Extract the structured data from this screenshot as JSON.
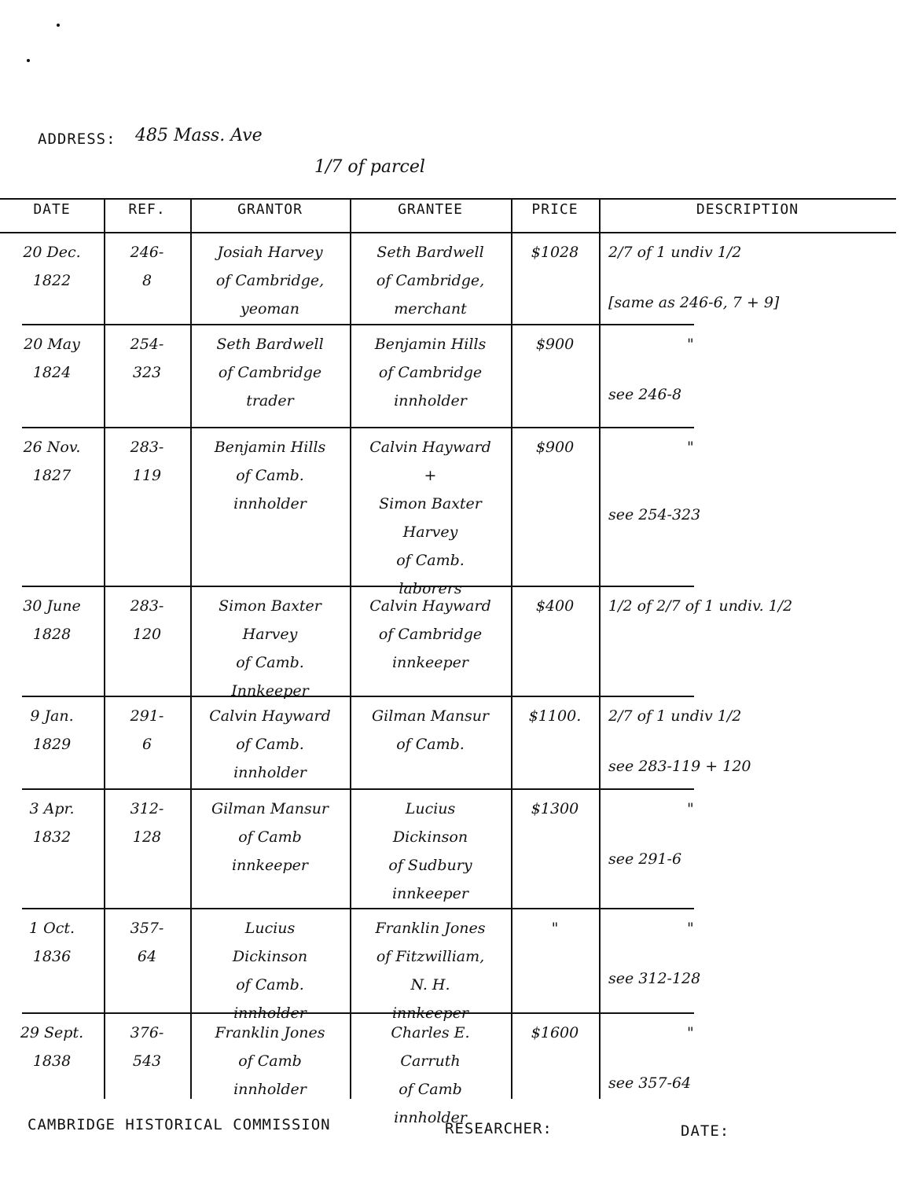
{
  "header": {
    "address_label": "ADDRESS:",
    "address_value": "485 Mass. Ave",
    "parcel_note": "1/7 of parcel"
  },
  "columns": [
    "DATE",
    "REF.",
    "GRANTOR",
    "GRANTEE",
    "PRICE",
    "DESCRIPTION"
  ],
  "rows": [
    {
      "date": [
        "20 Dec.",
        "1822"
      ],
      "ref": [
        "246-",
        "8"
      ],
      "grantor": [
        "Josiah Harvey",
        "of Cambridge,",
        "yeoman"
      ],
      "grantee": [
        "Seth Bardwell",
        "of Cambridge,",
        "merchant"
      ],
      "price": "$1028",
      "description": [
        "2/7 of 1 undiv 1/2",
        "[same as 246-6, 7 + 9]"
      ]
    },
    {
      "date": [
        "20 May",
        "1824"
      ],
      "ref": [
        "254-",
        "323"
      ],
      "grantor": [
        "Seth Bardwell",
        "of Cambridge",
        "trader"
      ],
      "grantee": [
        "Benjamin Hills",
        "of Cambridge",
        "innholder"
      ],
      "price": "$900",
      "description": [
        "\"",
        "see 246-8"
      ]
    },
    {
      "date": [
        "26 Nov.",
        "1827"
      ],
      "ref": [
        "283-",
        "119"
      ],
      "grantor": [
        "Benjamin Hills",
        "of Camb.",
        "innholder"
      ],
      "grantee": [
        "Calvin Hayward",
        "+",
        "Simon Baxter",
        "Harvey",
        "of Camb.",
        "laborers"
      ],
      "price": "$900",
      "description": [
        "\"",
        "see 254-323"
      ]
    },
    {
      "date": [
        "30 June",
        "1828"
      ],
      "ref": [
        "283-",
        "120"
      ],
      "grantor": [
        "Simon Baxter",
        "Harvey",
        "of Camb.",
        "Innkeeper"
      ],
      "grantee": [
        "Calvin Hayward",
        "of Cambridge",
        "innkeeper"
      ],
      "price": "$400",
      "description": [
        "1/2 of 2/7 of 1 undiv. 1/2"
      ]
    },
    {
      "date": [
        "9 Jan.",
        "1829"
      ],
      "ref": [
        "291-",
        "6"
      ],
      "grantor": [
        "Calvin Hayward",
        "of Camb.",
        "innholder"
      ],
      "grantee": [
        "Gilman Mansur",
        "of Camb."
      ],
      "price": "$1100.",
      "description": [
        "2/7 of 1 undiv 1/2",
        "see 283-119 + 120"
      ]
    },
    {
      "date": [
        "3 Apr.",
        "1832"
      ],
      "ref": [
        "312-",
        "128"
      ],
      "grantor": [
        "Gilman Mansur",
        "of Camb",
        "innkeeper"
      ],
      "grantee": [
        "Lucius",
        "Dickinson",
        "of Sudbury",
        "innkeeper"
      ],
      "price": "$1300",
      "description": [
        "\"",
        "see 291-6"
      ]
    },
    {
      "date": [
        "1 Oct.",
        "1836"
      ],
      "ref": [
        "357-",
        "64"
      ],
      "grantor": [
        "Lucius",
        "Dickinson",
        "of Camb.",
        "innholder"
      ],
      "grantee": [
        "Franklin Jones",
        "of Fitzwilliam,",
        "N. H.",
        "innkeeper"
      ],
      "price": "\"",
      "description": [
        "\"",
        "see 312-128"
      ]
    },
    {
      "date": [
        "29 Sept.",
        "1838"
      ],
      "ref": [
        "376-",
        "543"
      ],
      "grantor": [
        "Franklin Jones",
        "of Camb",
        "innholder"
      ],
      "grantee": [
        "Charles E.",
        "Carruth",
        "of Camb",
        "innholder"
      ],
      "price": "$1600",
      "description": [
        "\"",
        "see 357-64"
      ]
    }
  ],
  "footer": {
    "commission": "CAMBRIDGE HISTORICAL COMMISSION",
    "researcher_label": "RESEARCHER:",
    "date_label": "DATE:"
  }
}
